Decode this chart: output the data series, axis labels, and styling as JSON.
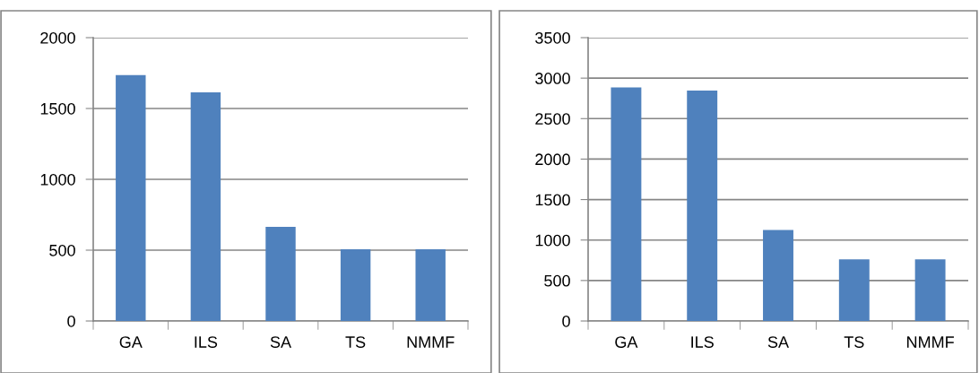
{
  "chart_data": [
    {
      "type": "bar",
      "categories": [
        "GA",
        "ILS",
        "SA",
        "TS",
        "NMMF"
      ],
      "values": [
        1735,
        1614,
        664,
        507,
        507
      ],
      "color": "#4f81bd",
      "ylim": [
        0,
        2000
      ],
      "yticks": [
        0,
        500,
        1000,
        1500,
        2000
      ],
      "grid": "y"
    },
    {
      "type": "bar",
      "categories": [
        "GA",
        "ILS",
        "SA",
        "TS",
        "NMMF"
      ],
      "values": [
        2885,
        2846,
        1123,
        762,
        762
      ],
      "color": "#4f81bd",
      "ylim": [
        0,
        3500
      ],
      "yticks": [
        0,
        500,
        1000,
        1500,
        2000,
        2500,
        3000,
        3500
      ],
      "grid": "y"
    }
  ]
}
